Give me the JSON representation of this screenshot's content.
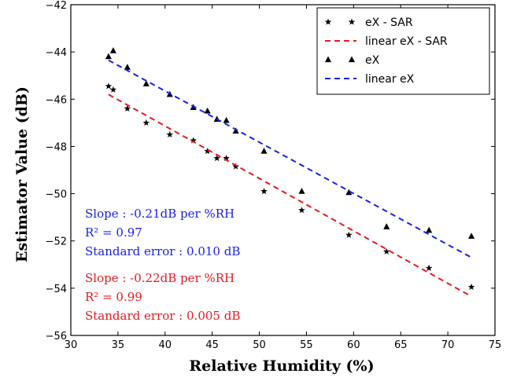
{
  "chart_data": {
    "type": "scatter",
    "xlabel": "Relative Humidity (%)",
    "ylabel": "Estimator Value (dB)",
    "xlim": [
      30,
      75
    ],
    "ylim": [
      -56,
      -42
    ],
    "xticks": [
      "30",
      "35",
      "40",
      "45",
      "50",
      "55",
      "60",
      "65",
      "70",
      "75"
    ],
    "yticks": [
      "−42",
      "−44",
      "−46",
      "−48",
      "−50",
      "−52",
      "−54",
      "−56"
    ],
    "grid": false,
    "legend_position": "top-right",
    "series": [
      {
        "name": "eX - SAR",
        "marker": "star",
        "color": "#000000",
        "x": [
          34.0,
          34.5,
          36.0,
          38.0,
          40.5,
          43.0,
          44.5,
          45.5,
          46.5,
          47.5,
          50.5,
          54.5,
          59.5,
          63.5,
          68.0,
          72.5
        ],
        "y": [
          -45.45,
          -45.6,
          -46.4,
          -47.0,
          -47.5,
          -47.75,
          -48.2,
          -48.5,
          -48.5,
          -48.85,
          -49.9,
          -50.7,
          -51.75,
          -52.45,
          -53.15,
          -53.95
        ]
      },
      {
        "name": "linear eX - SAR",
        "line": "dashed",
        "color": "#e8191e",
        "x": [
          34.0,
          72.5
        ],
        "y": [
          -45.8,
          -54.35
        ]
      },
      {
        "name": "eX",
        "marker": "triangle",
        "color": "#000000",
        "x": [
          34.0,
          34.5,
          36.0,
          38.0,
          40.5,
          43.0,
          44.5,
          45.5,
          46.5,
          47.5,
          50.5,
          54.5,
          59.5,
          63.5,
          68.0,
          72.5
        ],
        "y": [
          -44.2,
          -43.95,
          -44.65,
          -45.35,
          -45.8,
          -46.35,
          -46.5,
          -46.85,
          -46.9,
          -47.35,
          -48.2,
          -49.9,
          -49.95,
          -51.4,
          -51.55,
          -51.8
        ]
      },
      {
        "name": "linear eX",
        "line": "dashed",
        "color": "#1a22e8",
        "x": [
          34.0,
          72.5
        ],
        "y": [
          -44.35,
          -52.7
        ]
      }
    ],
    "annotations": [
      {
        "color": "#1a22e8",
        "lines": [
          "Slope : -0.21dB per %RH",
          "R² = 0.97",
          "Standard error : 0.010 dB"
        ]
      },
      {
        "color": "#e8191e",
        "lines": [
          "Slope : -0.22dB per %RH",
          "R² = 0.99",
          "Standard error : 0.005 dB"
        ]
      }
    ]
  }
}
